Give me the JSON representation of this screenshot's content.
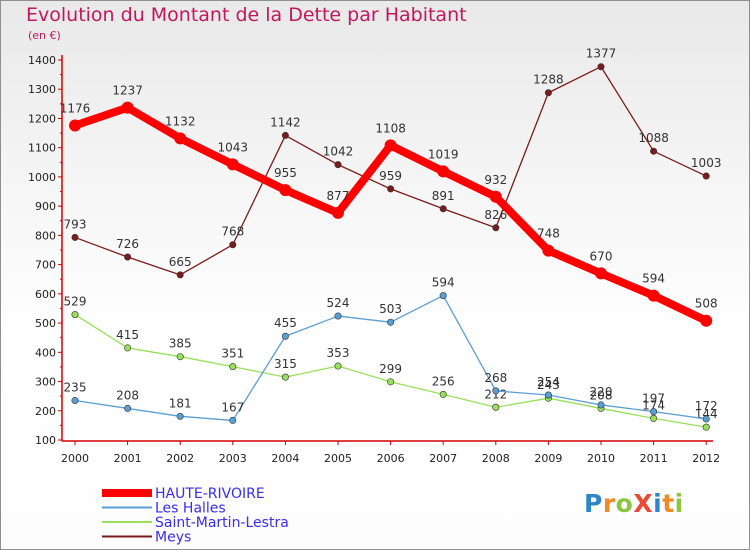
{
  "title": "Evolution du Montant de la Dette par Habitant",
  "unit_label": "(en €)",
  "logo": {
    "text": "ProXiti",
    "colors": [
      "#2c86c9",
      "#f08a24",
      "#8cc63f",
      "#e94b35",
      "#2c86c9",
      "#f08a24",
      "#8cc63f"
    ]
  },
  "chart_data": {
    "type": "line",
    "title": "Evolution du Montant de la Dette par Habitant",
    "ylabel": "(en €)",
    "xlabel": "",
    "x": [
      "2000",
      "2001",
      "2002",
      "2003",
      "2004",
      "2005",
      "2006",
      "2007",
      "2008",
      "2009",
      "2010",
      "2011",
      "2012"
    ],
    "ylim": [
      100,
      1400
    ],
    "yticks": [
      100,
      200,
      300,
      400,
      500,
      600,
      700,
      800,
      900,
      1000,
      1100,
      1200,
      1300,
      1400
    ],
    "grid": false,
    "legend_position": "bottom-left",
    "series": [
      {
        "name": "Meys",
        "color": "#7b1c1c",
        "values": [
          793,
          726,
          665,
          768,
          1142,
          1042,
          959,
          891,
          826,
          1288,
          1377,
          1088,
          1003
        ]
      },
      {
        "name": "Saint-Martin-Lestra",
        "color": "#99e05a",
        "values": [
          529,
          415,
          385,
          351,
          315,
          353,
          299,
          256,
          212,
          243,
          208,
          174,
          144
        ]
      },
      {
        "name": "Les Halles",
        "color": "#5a9fd4",
        "values": [
          235,
          208,
          181,
          167,
          455,
          524,
          503,
          594,
          268,
          254,
          220,
          197,
          172
        ]
      },
      {
        "name": "HAUTE-RIVOIRE",
        "color": "#ff0000",
        "values": [
          1176,
          1237,
          1132,
          1043,
          955,
          877,
          1108,
          1019,
          932,
          748,
          670,
          594,
          508
        ]
      }
    ],
    "legend_order": [
      "HAUTE-RIVOIRE",
      "Les Halles",
      "Saint-Martin-Lestra",
      "Meys"
    ]
  }
}
